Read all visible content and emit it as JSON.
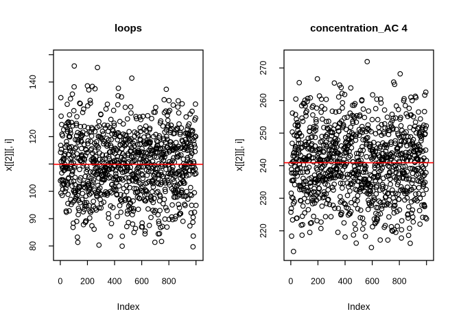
{
  "figure": {
    "background": "#ffffff",
    "axis_color": "#000000",
    "point_color": "#000000",
    "mean_line_color": "#ff0000"
  },
  "chart_data": [
    {
      "type": "scatter",
      "title": "loops",
      "xlabel": "Index",
      "ylabel": "x[[2]][, i]",
      "marker": "open-circle",
      "grid": false,
      "legend": null,
      "n_points": 1000,
      "x_values": "sequential index 1..1000",
      "xlim": [
        -50,
        1052
      ],
      "ylim": [
        74.7,
        151.7
      ],
      "y_summary": {
        "mean": 109.9,
        "sd": 11.5,
        "min": 77.5,
        "max": 148.8
      },
      "mean_line": 109.9,
      "seed": 101,
      "x_ticks": [
        {
          "value": 0,
          "label": "0"
        },
        {
          "value": 200,
          "label": "200"
        },
        {
          "value": 400,
          "label": "400"
        },
        {
          "value": 600,
          "label": "600"
        },
        {
          "value": 800,
          "label": "800"
        },
        {
          "value": 1000,
          "label": null
        }
      ],
      "y_ticks": [
        {
          "value": 80,
          "label": "80"
        },
        {
          "value": 90,
          "label": "90"
        },
        {
          "value": 100,
          "label": "100"
        },
        {
          "value": 110,
          "label": null
        },
        {
          "value": 120,
          "label": "120"
        },
        {
          "value": 130,
          "label": null
        },
        {
          "value": 140,
          "label": "140"
        },
        {
          "value": 150,
          "label": null
        }
      ]
    },
    {
      "type": "scatter",
      "title": "concentration_AC 4",
      "xlabel": "Index",
      "ylabel": "x[[2]][, i]",
      "marker": "open-circle",
      "grid": false,
      "legend": null,
      "n_points": 1000,
      "x_values": "sequential index 1..1000",
      "xlim": [
        -50,
        1052
      ],
      "ylim": [
        210.9,
        275.5
      ],
      "y_summary": {
        "mean": 240.9,
        "sd": 10.0,
        "min": 213.0,
        "max": 272.5
      },
      "mean_line": 240.9,
      "seed": 202,
      "x_ticks": [
        {
          "value": 0,
          "label": "0"
        },
        {
          "value": 200,
          "label": "200"
        },
        {
          "value": 400,
          "label": "400"
        },
        {
          "value": 600,
          "label": "600"
        },
        {
          "value": 800,
          "label": "800"
        },
        {
          "value": 1000,
          "label": null
        }
      ],
      "y_ticks": [
        {
          "value": 220,
          "label": "220"
        },
        {
          "value": 230,
          "label": "230"
        },
        {
          "value": 240,
          "label": "240"
        },
        {
          "value": 250,
          "label": "250"
        },
        {
          "value": 260,
          "label": "260"
        },
        {
          "value": 270,
          "label": "270"
        }
      ]
    }
  ]
}
